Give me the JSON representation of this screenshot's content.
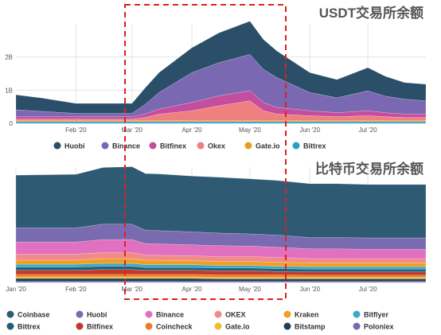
{
  "highlight_color": "#e0201b",
  "chart_data": [
    {
      "type": "area",
      "title": "USDT交易所余额",
      "stacked": true,
      "x_ticks": [
        "Feb '20",
        "Mar '20",
        "Apr '20",
        "May '20",
        "Jun '20",
        "Jul '20"
      ],
      "y_ticks": [
        "0",
        "1B",
        "2B"
      ],
      "ylim": [
        0,
        3.0
      ],
      "grid": true,
      "legend_position": "bottom",
      "x": [
        "2020-01-01",
        "2020-01-15",
        "2020-02-01",
        "2020-02-15",
        "2020-03-01",
        "2020-03-08",
        "2020-03-15",
        "2020-04-01",
        "2020-04-15",
        "2020-05-01",
        "2020-05-08",
        "2020-05-15",
        "2020-06-01",
        "2020-06-15",
        "2020-07-01",
        "2020-07-10",
        "2020-07-20",
        "2020-07-31"
      ],
      "series": [
        {
          "name": "Bittrex",
          "color": "#2a9fc0",
          "values": [
            0.05,
            0.05,
            0.05,
            0.05,
            0.05,
            0.05,
            0.05,
            0.05,
            0.05,
            0.05,
            0.05,
            0.05,
            0.05,
            0.05,
            0.05,
            0.05,
            0.05,
            0.05
          ]
        },
        {
          "name": "Gate.io",
          "color": "#e8a020",
          "values": [
            0.03,
            0.03,
            0.03,
            0.03,
            0.03,
            0.03,
            0.03,
            0.03,
            0.03,
            0.03,
            0.03,
            0.03,
            0.03,
            0.03,
            0.03,
            0.03,
            0.03,
            0.03
          ]
        },
        {
          "name": "Okex",
          "color": "#f08080",
          "values": [
            0.05,
            0.05,
            0.05,
            0.05,
            0.05,
            0.1,
            0.2,
            0.3,
            0.45,
            0.6,
            0.3,
            0.2,
            0.15,
            0.12,
            0.15,
            0.12,
            0.1,
            0.1
          ]
        },
        {
          "name": "Bitfinex",
          "color": "#c44d9e",
          "values": [
            0.08,
            0.08,
            0.07,
            0.07,
            0.07,
            0.1,
            0.15,
            0.25,
            0.3,
            0.3,
            0.25,
            0.2,
            0.15,
            0.12,
            0.15,
            0.12,
            0.1,
            0.1
          ]
        },
        {
          "name": "Binance",
          "color": "#7b68b3",
          "values": [
            0.2,
            0.15,
            0.1,
            0.1,
            0.1,
            0.3,
            0.5,
            0.9,
            1.0,
            1.1,
            1.0,
            0.9,
            0.55,
            0.45,
            0.6,
            0.5,
            0.45,
            0.4
          ]
        },
        {
          "name": "Huobi",
          "color": "#2b4f69",
          "values": [
            0.45,
            0.4,
            0.3,
            0.3,
            0.3,
            0.5,
            0.6,
            0.75,
            0.9,
            1.0,
            0.9,
            0.8,
            0.6,
            0.55,
            0.7,
            0.6,
            0.5,
            0.5
          ]
        }
      ]
    },
    {
      "type": "area",
      "title": "比特币交易所余额",
      "stacked": true,
      "x_ticks": [
        "Jan '20",
        "Feb '20",
        "Mar '20",
        "Apr '20",
        "May '20",
        "Jun '20",
        "Jul '20"
      ],
      "ylim": [
        0,
        2.85
      ],
      "grid": true,
      "legend_position": "bottom",
      "x": [
        "2020-01-01",
        "2020-02-01",
        "2020-02-15",
        "2020-03-01",
        "2020-03-08",
        "2020-03-15",
        "2020-04-01",
        "2020-04-15",
        "2020-05-01",
        "2020-05-15",
        "2020-06-01",
        "2020-06-15",
        "2020-07-01",
        "2020-07-31"
      ],
      "series": [
        {
          "name": "Poloniex",
          "color": "#7b68b3",
          "values": [
            0.03,
            0.03,
            0.03,
            0.03,
            0.03,
            0.03,
            0.03,
            0.03,
            0.03,
            0.03,
            0.03,
            0.03,
            0.03,
            0.03
          ]
        },
        {
          "name": "Bitstamp",
          "color": "#1f3f57",
          "values": [
            0.07,
            0.07,
            0.07,
            0.07,
            0.07,
            0.07,
            0.07,
            0.06,
            0.06,
            0.06,
            0.06,
            0.06,
            0.06,
            0.06
          ]
        },
        {
          "name": "Gate.io",
          "color": "#e8c030",
          "values": [
            0.04,
            0.04,
            0.04,
            0.04,
            0.04,
            0.04,
            0.04,
            0.04,
            0.04,
            0.04,
            0.04,
            0.04,
            0.04,
            0.04
          ]
        },
        {
          "name": "Coincheck",
          "color": "#ee7a2c",
          "values": [
            0.06,
            0.06,
            0.06,
            0.06,
            0.06,
            0.06,
            0.06,
            0.06,
            0.06,
            0.06,
            0.05,
            0.05,
            0.05,
            0.05
          ]
        },
        {
          "name": "Bitfinex",
          "color": "#c0392b",
          "values": [
            0.1,
            0.1,
            0.12,
            0.12,
            0.1,
            0.1,
            0.1,
            0.1,
            0.1,
            0.08,
            0.08,
            0.08,
            0.08,
            0.08
          ]
        },
        {
          "name": "Bittrex",
          "color": "#1f5f7a",
          "values": [
            0.08,
            0.08,
            0.08,
            0.08,
            0.07,
            0.07,
            0.07,
            0.07,
            0.07,
            0.07,
            0.07,
            0.07,
            0.07,
            0.07
          ]
        },
        {
          "name": "Bitflyer",
          "color": "#3aa8c8",
          "values": [
            0.07,
            0.07,
            0.07,
            0.07,
            0.07,
            0.07,
            0.07,
            0.06,
            0.06,
            0.06,
            0.06,
            0.06,
            0.06,
            0.06
          ]
        },
        {
          "name": "Kraken",
          "color": "#f0a020",
          "values": [
            0.1,
            0.1,
            0.12,
            0.12,
            0.11,
            0.11,
            0.1,
            0.1,
            0.1,
            0.1,
            0.09,
            0.09,
            0.09,
            0.09
          ]
        },
        {
          "name": "OKEX",
          "color": "#f28a8a",
          "values": [
            0.15,
            0.15,
            0.15,
            0.15,
            0.13,
            0.12,
            0.12,
            0.12,
            0.12,
            0.12,
            0.11,
            0.11,
            0.11,
            0.11
          ]
        },
        {
          "name": "Binance",
          "color": "#e070c0",
          "values": [
            0.3,
            0.3,
            0.32,
            0.32,
            0.28,
            0.28,
            0.27,
            0.27,
            0.26,
            0.25,
            0.24,
            0.24,
            0.23,
            0.23
          ]
        },
        {
          "name": "Huobi",
          "color": "#7a6bb0",
          "values": [
            0.35,
            0.35,
            0.38,
            0.38,
            0.33,
            0.33,
            0.32,
            0.31,
            0.3,
            0.3,
            0.28,
            0.28,
            0.28,
            0.28
          ]
        },
        {
          "name": "Coinbase",
          "color": "#2f5a73",
          "values": [
            1.3,
            1.32,
            1.4,
            1.42,
            1.4,
            1.4,
            1.38,
            1.38,
            1.36,
            1.35,
            1.33,
            1.33,
            1.32,
            1.32
          ]
        }
      ]
    }
  ]
}
